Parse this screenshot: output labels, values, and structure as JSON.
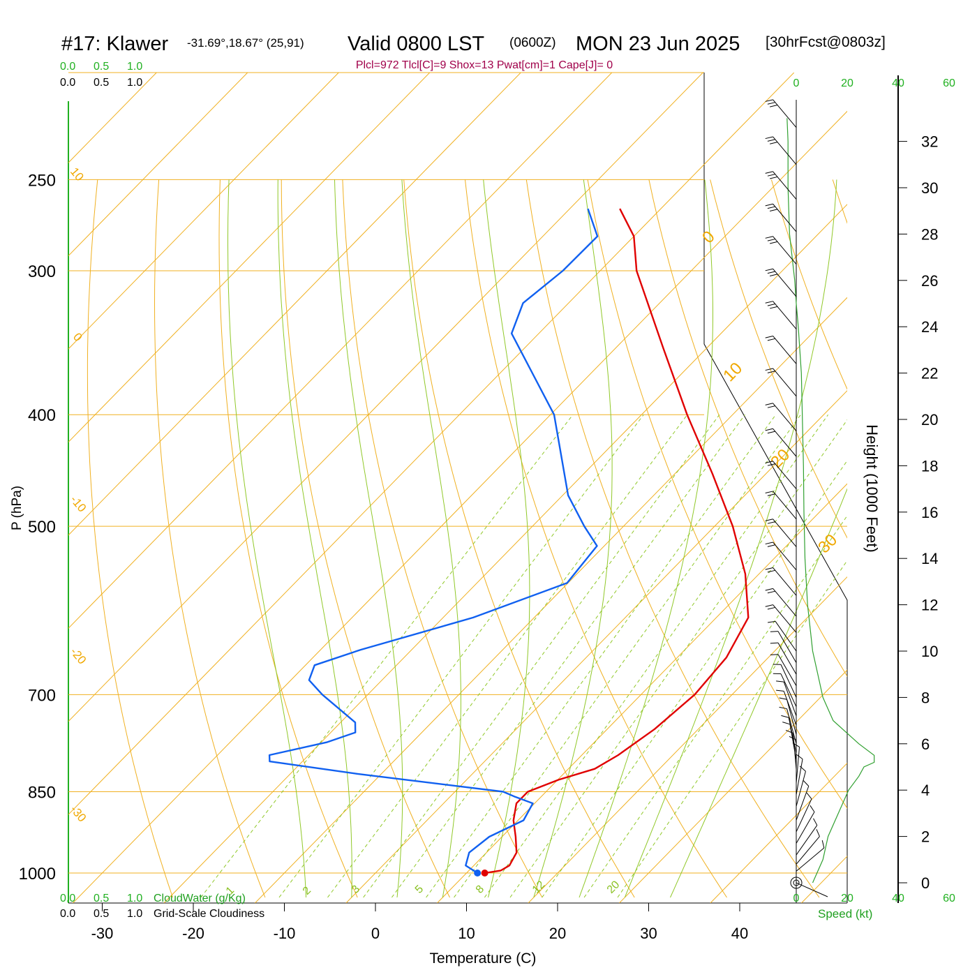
{
  "header": {
    "station": "#17: Klawer",
    "coords": "-31.69°,18.67° (25,91)",
    "valid": "Valid 0800 LST",
    "utc": "(0600Z)",
    "date": "MON 23 Jun 2025",
    "forecast": "[30hrFcst@0803z]",
    "indices": "Plcl=972 Tlcl[C]=9 Shox=13 Pwat[cm]=1 Cape[J]= 0"
  },
  "labels": {
    "cloud_scale_top_green": [
      "0.0",
      "0.5",
      "1.0"
    ],
    "cloud_scale_top_black": [
      "0.0",
      "0.5",
      "1.0"
    ],
    "cloud_scale_bottom_green": [
      "0.0",
      "0.5",
      "1.0"
    ],
    "cloud_scale_bottom_black": [
      "0.0",
      "0.5",
      "1.0"
    ],
    "cloudwater": "CloudWater (g/Kg)",
    "cloudiness": "Grid-Scale Cloudiness",
    "speed": "Speed (kt)",
    "speed_ticks_top": [
      "0",
      "20",
      "40",
      "60"
    ],
    "speed_ticks_bottom": [
      "0",
      "20",
      "40",
      "60"
    ],
    "height_axis": "Height (1000 Feet)",
    "height_ticks": [
      "0",
      "2",
      "4",
      "6",
      "8",
      "10",
      "12",
      "14",
      "16",
      "18",
      "20",
      "22",
      "24",
      "26",
      "28",
      "30",
      "32"
    ]
  },
  "chart_data": {
    "type": "skew-t sounding",
    "xlabel": "Temperature (C)",
    "ylabel": "P (hPa)",
    "x_ticks": [
      -30,
      -20,
      -10,
      0,
      10,
      20,
      30,
      40
    ],
    "p_ticks": [
      250,
      300,
      400,
      500,
      700,
      850,
      1000
    ],
    "isotherm_labels": [
      "10",
      "0",
      "-10",
      "-20",
      "-30",
      "0",
      "10",
      "20",
      "30"
    ],
    "mixing_ratio_labels": [
      "1",
      "2",
      "3",
      "5",
      "8",
      "12",
      "20"
    ],
    "series": [
      {
        "name": "temperature",
        "color": "#e00000",
        "points": [
          [
            1000,
            12.0
          ],
          [
            995,
            13.5
          ],
          [
            985,
            13.9
          ],
          [
            960,
            13.3
          ],
          [
            930,
            11.5
          ],
          [
            900,
            9.5
          ],
          [
            870,
            8.0
          ],
          [
            850,
            8.0
          ],
          [
            830,
            10.1
          ],
          [
            812,
            12.9
          ],
          [
            790,
            14.0
          ],
          [
            750,
            15.2
          ],
          [
            700,
            15.9
          ],
          [
            650,
            15.4
          ],
          [
            600,
            13.5
          ],
          [
            550,
            8.5
          ],
          [
            500,
            2.0
          ],
          [
            450,
            -5.9
          ],
          [
            400,
            -15.0
          ],
          [
            350,
            -24.8
          ],
          [
            300,
            -36.0
          ],
          [
            280,
            -40.0
          ],
          [
            265,
            -44.5
          ]
        ]
      },
      {
        "name": "dewpoint",
        "color": "#1060f0",
        "points": [
          [
            1000,
            11.2
          ],
          [
            985,
            9.1
          ],
          [
            960,
            8.1
          ],
          [
            930,
            8.6
          ],
          [
            900,
            10.6
          ],
          [
            870,
            9.8
          ],
          [
            858,
            7.0
          ],
          [
            850,
            5.3
          ],
          [
            820,
            -12.7
          ],
          [
            800,
            -23.6
          ],
          [
            790,
            -24.3
          ],
          [
            770,
            -19.4
          ],
          [
            755,
            -17.3
          ],
          [
            740,
            -18.4
          ],
          [
            700,
            -25.0
          ],
          [
            680,
            -28.0
          ],
          [
            660,
            -29.0
          ],
          [
            640,
            -25.6
          ],
          [
            600,
            -16.7
          ],
          [
            560,
            -10.1
          ],
          [
            520,
            -10.8
          ],
          [
            500,
            -14.3
          ],
          [
            470,
            -19.4
          ],
          [
            400,
            -29.6
          ],
          [
            340,
            -43.0
          ],
          [
            320,
            -45.0
          ],
          [
            300,
            -44.1
          ],
          [
            280,
            -44.0
          ],
          [
            265,
            -48.0
          ]
        ]
      }
    ],
    "markers": [
      {
        "name": "surface-temperature",
        "p": 1000,
        "t": 12.0,
        "color": "#e00000"
      },
      {
        "name": "surface-dewpoint",
        "p": 1000,
        "t": 11.2,
        "color": "#1060f0"
      }
    ],
    "wind_speed_kt": [
      [
        0,
        3
      ],
      [
        1,
        5
      ],
      [
        2,
        6
      ],
      [
        3,
        8
      ],
      [
        4,
        10
      ],
      [
        4.6,
        12
      ],
      [
        5,
        13
      ],
      [
        5.2,
        15
      ],
      [
        5.5,
        15
      ],
      [
        6,
        12
      ],
      [
        7,
        7
      ],
      [
        8,
        5
      ],
      [
        9,
        4
      ],
      [
        10,
        3
      ],
      [
        12,
        2
      ],
      [
        14,
        1.5
      ],
      [
        16,
        1.3
      ],
      [
        18,
        1.2
      ],
      [
        20,
        1.0
      ],
      [
        22,
        0.8
      ],
      [
        24,
        0.2
      ],
      [
        25,
        -0.2
      ],
      [
        26,
        -0.5
      ],
      [
        27,
        -1.0
      ],
      [
        28,
        -1.5
      ],
      [
        30,
        -1.8
      ],
      [
        32,
        -1.8
      ],
      [
        33,
        -2.0
      ]
    ],
    "wind_barbs": [
      [
        0,
        0
      ],
      [
        0.5,
        230,
        8
      ],
      [
        0.8,
        220,
        10
      ],
      [
        1.2,
        215,
        10
      ],
      [
        1.7,
        210,
        10
      ],
      [
        2.2,
        205,
        10
      ],
      [
        2.7,
        200,
        10
      ],
      [
        3.3,
        195,
        10
      ],
      [
        3.8,
        190,
        10
      ],
      [
        4.3,
        185,
        10
      ],
      [
        4.6,
        180,
        10
      ],
      [
        4.9,
        175,
        10
      ],
      [
        5.3,
        170,
        10
      ],
      [
        5.6,
        168,
        10
      ],
      [
        6,
        165,
        10
      ],
      [
        6.4,
        165,
        10
      ],
      [
        6.8,
        160,
        10
      ],
      [
        7.2,
        160,
        10
      ],
      [
        7.6,
        155,
        10
      ],
      [
        8,
        155,
        10
      ],
      [
        8.5,
        150,
        10
      ],
      [
        9,
        150,
        10
      ],
      [
        9.5,
        150,
        10
      ],
      [
        10,
        145,
        10
      ],
      [
        10.8,
        140,
        20
      ],
      [
        11.5,
        140,
        20
      ],
      [
        12.4,
        140,
        20
      ],
      [
        13.5,
        140,
        20
      ],
      [
        14.5,
        140,
        20
      ],
      [
        15.7,
        140,
        20
      ],
      [
        17,
        140,
        20
      ],
      [
        18.4,
        140,
        20
      ],
      [
        19.5,
        140,
        20
      ],
      [
        21,
        140,
        20
      ],
      [
        22.4,
        140,
        20
      ],
      [
        23.9,
        140,
        30
      ],
      [
        25.3,
        140,
        30
      ],
      [
        26.7,
        140,
        30
      ],
      [
        28.1,
        140,
        30
      ],
      [
        29.5,
        140,
        30
      ],
      [
        31,
        140,
        30
      ],
      [
        32.6,
        140,
        30
      ]
    ]
  }
}
